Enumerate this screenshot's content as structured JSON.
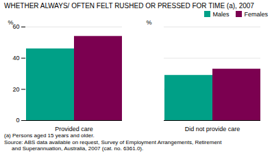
{
  "chart_data": {
    "type": "bar",
    "title": "WHETHER ALWAYS/ OFTEN FELT RUSHED OR PRESSED FOR TIME (a), 2007",
    "ylabel": "%",
    "categories": [
      "Provided care",
      "Did not provide care"
    ],
    "series": [
      {
        "name": "Males",
        "color": "#00a087",
        "values": [
          46,
          29
        ]
      },
      {
        "name": "Females",
        "color": "#7b0050",
        "values": [
          54,
          33
        ]
      }
    ],
    "ylim": [
      0,
      60
    ],
    "yticks": [
      0,
      20,
      40,
      60
    ],
    "grid": true,
    "legend": "upper right",
    "annotations": [
      "(a) Persons aged 15 years and older.",
      "Source: ABS data available on request, Survey of Employment Arrangements, Retirement",
      "     and Superannuation, Australia, 2007 (cat. no. 6361.0)."
    ]
  }
}
